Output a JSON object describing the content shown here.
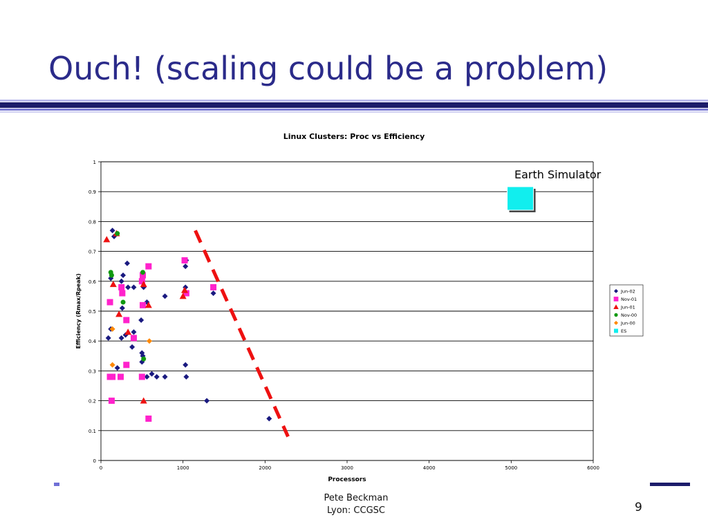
{
  "slide": {
    "title": "Ouch! (scaling could be a problem)",
    "footer_line1": "Pete Beckman",
    "footer_line2": "Lyon:  CCGSC",
    "page_number": "9"
  },
  "chart_data": {
    "type": "scatter",
    "title": "Linux Clusters: Proc vs Efficiency",
    "xlabel": "Processors",
    "ylabel": "Efficiency (Rmax/Rpeak)",
    "xlim": [
      0,
      6000
    ],
    "ylim": [
      0,
      1
    ],
    "xticks": [
      0,
      1000,
      2000,
      3000,
      4000,
      5000,
      6000
    ],
    "yticks": [
      0,
      0.1,
      0.2,
      0.3,
      0.4,
      0.5,
      0.6,
      0.7,
      0.8,
      0.9,
      1
    ],
    "grid": "horizontal",
    "legend_position": "right",
    "annotation": "Earth Simulator",
    "trend_line": {
      "color": "#ee1111",
      "style": "dashed",
      "points": [
        [
          1150,
          0.77
        ],
        [
          2280,
          0.08
        ]
      ]
    },
    "series": [
      {
        "name": "Jun-02",
        "marker": "diamond",
        "color": "#1a1a80",
        "points": [
          [
            140,
            0.77
          ],
          [
            160,
            0.75
          ],
          [
            320,
            0.66
          ],
          [
            120,
            0.61
          ],
          [
            270,
            0.62
          ],
          [
            250,
            0.6
          ],
          [
            330,
            0.58
          ],
          [
            400,
            0.58
          ],
          [
            520,
            0.58
          ],
          [
            1030,
            0.65
          ],
          [
            1040,
            0.67
          ],
          [
            560,
            0.53
          ],
          [
            260,
            0.51
          ],
          [
            510,
            0.52
          ],
          [
            1370,
            0.56
          ],
          [
            780,
            0.55
          ],
          [
            1030,
            0.58
          ],
          [
            490,
            0.47
          ],
          [
            120,
            0.44
          ],
          [
            400,
            0.43
          ],
          [
            300,
            0.42
          ],
          [
            90,
            0.41
          ],
          [
            250,
            0.41
          ],
          [
            380,
            0.38
          ],
          [
            500,
            0.36
          ],
          [
            510,
            0.35
          ],
          [
            500,
            0.33
          ],
          [
            1030,
            0.32
          ],
          [
            200,
            0.31
          ],
          [
            510,
            0.28
          ],
          [
            560,
            0.28
          ],
          [
            620,
            0.29
          ],
          [
            680,
            0.28
          ],
          [
            780,
            0.28
          ],
          [
            1040,
            0.28
          ],
          [
            1290,
            0.2
          ],
          [
            2050,
            0.14
          ]
        ]
      },
      {
        "name": "Nov-01",
        "marker": "square",
        "color": "#ff22cc",
        "points": [
          [
            1020,
            0.67
          ],
          [
            580,
            0.65
          ],
          [
            510,
            0.62
          ],
          [
            500,
            0.6
          ],
          [
            250,
            0.58
          ],
          [
            1370,
            0.58
          ],
          [
            260,
            0.56
          ],
          [
            1040,
            0.56
          ],
          [
            110,
            0.53
          ],
          [
            510,
            0.52
          ],
          [
            310,
            0.47
          ],
          [
            400,
            0.41
          ],
          [
            310,
            0.32
          ],
          [
            110,
            0.28
          ],
          [
            140,
            0.28
          ],
          [
            240,
            0.28
          ],
          [
            500,
            0.28
          ],
          [
            130,
            0.2
          ],
          [
            580,
            0.14
          ]
        ]
      },
      {
        "name": "Jun-01",
        "marker": "triangle",
        "color": "#ee1111",
        "points": [
          [
            70,
            0.74
          ],
          [
            190,
            0.76
          ],
          [
            150,
            0.59
          ],
          [
            520,
            0.59
          ],
          [
            1020,
            0.57
          ],
          [
            1000,
            0.55
          ],
          [
            580,
            0.52
          ],
          [
            220,
            0.49
          ],
          [
            330,
            0.43
          ],
          [
            520,
            0.2
          ]
        ]
      },
      {
        "name": "Nov-00",
        "marker": "circle",
        "color": "#119911",
        "points": [
          [
            200,
            0.76
          ],
          [
            120,
            0.63
          ],
          [
            510,
            0.63
          ],
          [
            130,
            0.62
          ],
          [
            270,
            0.53
          ],
          [
            520,
            0.34
          ]
        ]
      },
      {
        "name": "Jun-00",
        "marker": "diamond",
        "color": "#ff8800",
        "points": [
          [
            140,
            0.44
          ],
          [
            590,
            0.4
          ],
          [
            140,
            0.32
          ]
        ]
      },
      {
        "name": "ES",
        "marker": "square-large",
        "color": "#11eeee",
        "points": [
          [
            5120,
            0.875
          ]
        ]
      }
    ]
  }
}
